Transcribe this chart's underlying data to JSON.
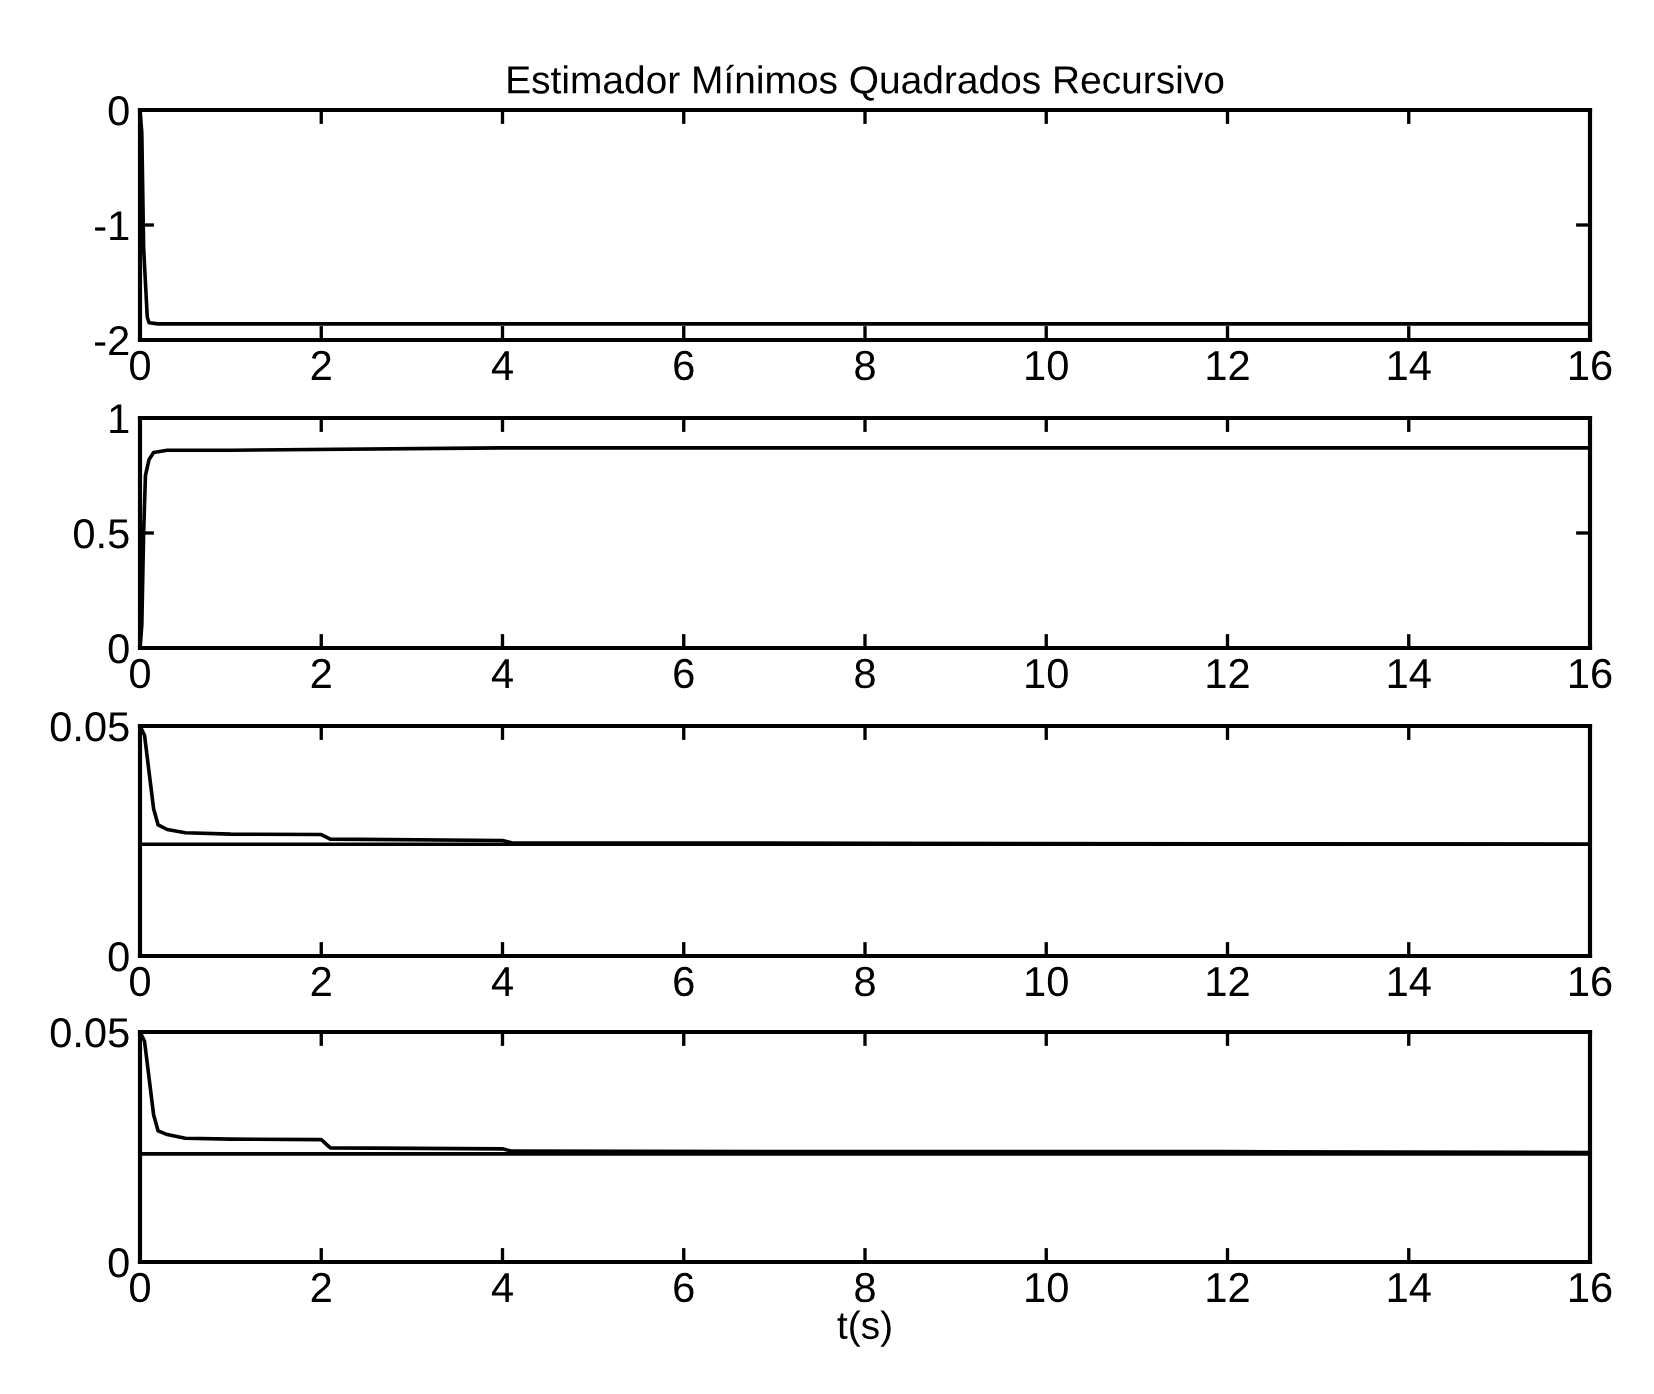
{
  "chart_data": [
    {
      "type": "line",
      "title": "Estimador Mínimos Quadrados Recursivo",
      "xlim": [
        0,
        16
      ],
      "xticks": [
        0,
        2,
        4,
        6,
        8,
        10,
        12,
        14,
        16
      ],
      "ylim": [
        -2,
        0
      ],
      "yticks": [
        -2,
        -1,
        0
      ],
      "grid": false,
      "legend": false,
      "series": [
        {
          "color": "#000000",
          "x": [
            0,
            0.02,
            0.04,
            0.06,
            0.08,
            0.1,
            0.2,
            4,
            8,
            12,
            16
          ],
          "values": [
            0,
            -0.2,
            -1.2,
            -1.5,
            -1.8,
            -1.85,
            -1.86,
            -1.86,
            -1.86,
            -1.86,
            -1.86
          ]
        }
      ]
    },
    {
      "type": "line",
      "xlim": [
        0,
        16
      ],
      "xticks": [
        0,
        2,
        4,
        6,
        8,
        10,
        12,
        14,
        16
      ],
      "ylim": [
        0,
        1
      ],
      "yticks": [
        0,
        0.5,
        1
      ],
      "grid": false,
      "legend": false,
      "series": [
        {
          "color": "#000000",
          "x": [
            0,
            0.02,
            0.04,
            0.06,
            0.1,
            0.15,
            0.3,
            1,
            4,
            8,
            12,
            16
          ],
          "values": [
            0,
            0.1,
            0.5,
            0.75,
            0.82,
            0.85,
            0.86,
            0.86,
            0.87,
            0.87,
            0.87,
            0.87
          ]
        }
      ]
    },
    {
      "type": "line",
      "xlim": [
        0,
        16
      ],
      "xticks": [
        0,
        2,
        4,
        6,
        8,
        10,
        12,
        14,
        16
      ],
      "ylim": [
        0,
        0.05
      ],
      "yticks": [
        0,
        0.05
      ],
      "grid": false,
      "legend": false,
      "series": [
        {
          "color": "#000000",
          "x": [
            0,
            0.05,
            0.1,
            0.15,
            0.2,
            0.3,
            0.5,
            1,
            2,
            2.1,
            4,
            4.1,
            8,
            12,
            16
          ],
          "values": [
            0.05,
            0.048,
            0.04,
            0.032,
            0.0285,
            0.0275,
            0.0268,
            0.0265,
            0.0264,
            0.0254,
            0.0251,
            0.0246,
            0.0245,
            0.0244,
            0.0243
          ]
        },
        {
          "color": "#000000",
          "x": [
            0,
            16
          ],
          "values": [
            0.0243,
            0.0243
          ]
        }
      ]
    },
    {
      "type": "line",
      "xlabel": "t(s)",
      "xlim": [
        0,
        16
      ],
      "xticks": [
        0,
        2,
        4,
        6,
        8,
        10,
        12,
        14,
        16
      ],
      "ylim": [
        0,
        0.05
      ],
      "yticks": [
        0,
        0.05
      ],
      "grid": false,
      "legend": false,
      "series": [
        {
          "color": "#000000",
          "x": [
            0,
            0.05,
            0.1,
            0.15,
            0.2,
            0.3,
            0.5,
            1,
            2,
            2.1,
            4,
            4.1,
            8,
            12,
            16
          ],
          "values": [
            0.05,
            0.048,
            0.04,
            0.032,
            0.0285,
            0.0277,
            0.0269,
            0.0267,
            0.0266,
            0.0248,
            0.0246,
            0.0241,
            0.024,
            0.024,
            0.0238
          ]
        },
        {
          "color": "#000000",
          "x": [
            0,
            16
          ],
          "values": [
            0.0235,
            0.0235
          ]
        }
      ]
    }
  ]
}
